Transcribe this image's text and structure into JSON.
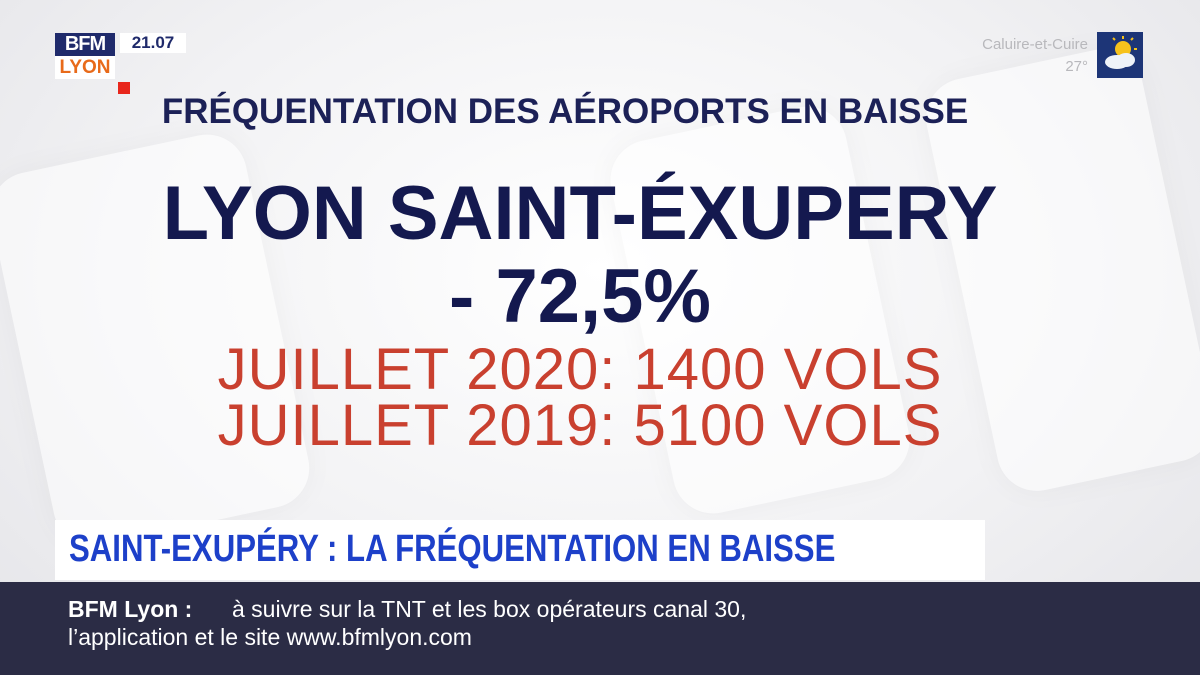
{
  "logo": {
    "top": "BFM",
    "bottom": "LYON"
  },
  "time": "21.07",
  "weather": {
    "city": "Caluire-et-Cuire",
    "temperature": "27°"
  },
  "headline": "FRÉQUENTATION DES AÉROPORTS EN BAISSE",
  "main_title": "LYON SAINT-ÉXUPERY",
  "change": "- 72,5%",
  "lines": [
    "JUILLET 2020: 1400 VOLS",
    "JUILLET 2019: 5100 VOLS"
  ],
  "banner": "SAINT-EXUPÉRY : LA FRÉQUENTATION EN BAISSE",
  "ticker": {
    "label": "BFM Lyon :",
    "lines": [
      "à suivre sur la TNT et les box opérateurs canal 30,",
      "l’application et le site www.bfmlyon.com"
    ]
  }
}
